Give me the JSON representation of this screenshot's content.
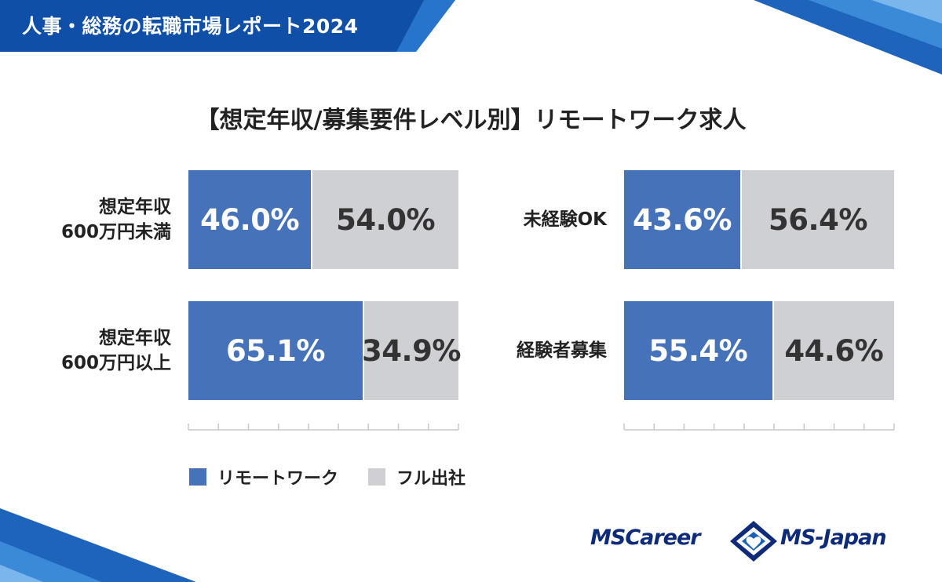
{
  "header": {
    "title": "人事・総務の転職市場レポート2024"
  },
  "chart_data": {
    "type": "bar",
    "stacked": true,
    "orientation": "horizontal",
    "title": "【想定年収/募集要件レベル別】リモートワーク求人",
    "panels": [
      {
        "categories": [
          [
            "想定年収",
            "600万円未満"
          ],
          [
            "想定年収",
            "600万円以上"
          ]
        ],
        "series": [
          {
            "name": "リモートワーク",
            "values": [
              46.0,
              65.1
            ],
            "labels": [
              "46.0%",
              "65.1%"
            ]
          },
          {
            "name": "フル出社",
            "values": [
              54.0,
              34.9
            ],
            "labels": [
              "54.0%",
              "34.9%"
            ]
          }
        ]
      },
      {
        "categories": [
          [
            "未経験OK"
          ],
          [
            "経験者募集"
          ]
        ],
        "series": [
          {
            "name": "リモートワーク",
            "values": [
              43.6,
              55.4
            ],
            "labels": [
              "43.6%",
              "55.4%"
            ]
          },
          {
            "name": "フル出社",
            "values": [
              56.4,
              44.6
            ],
            "labels": [
              "56.4%",
              "44.6%"
            ]
          }
        ]
      }
    ],
    "xlim": [
      0,
      100
    ],
    "legend": [
      {
        "label": "リモートワーク",
        "color": "#4672b9"
      },
      {
        "label": "フル出社",
        "color": "#cfd0d4"
      }
    ],
    "legend_position": "bottom-left",
    "grid": false
  },
  "footer": {
    "logos": [
      {
        "text": "MSCareer",
        "icon": "ms-japan-diamond-logo-icon"
      },
      {
        "text": "MS-Japan"
      }
    ],
    "colors": {
      "brand_navy": "#0d2b7a",
      "brand_blue": "#1a62b8"
    }
  }
}
